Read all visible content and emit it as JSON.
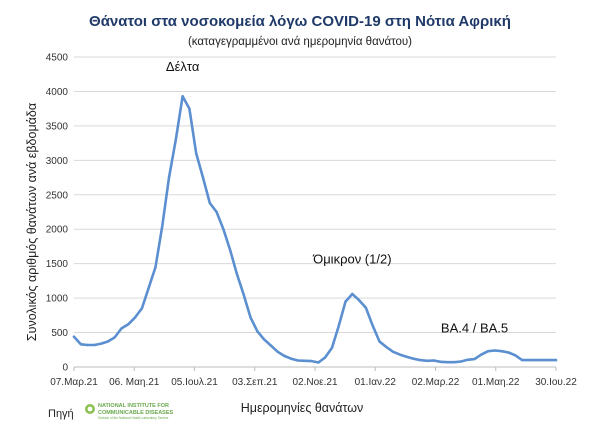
{
  "chart_data": {
    "type": "line",
    "title": "Θάνατοι στα νοσοκομεία λόγω COVID-19 στη Νότια Αφρική",
    "subtitle": "(καταγεγραμμένοι ανά ημερομηνία θανάτου)",
    "xlabel": "Ημερομηνίες θανάτων",
    "ylabel": "Συνολικός αριθμός θανάτων ανά εβδομάδα",
    "ylim": [
      0,
      4500
    ],
    "y_ticks": [
      0,
      500,
      1000,
      1500,
      2000,
      2500,
      3000,
      3500,
      4000,
      4500
    ],
    "x_tick_labels": [
      "07.Μαρ.21",
      "06. Μαη.21",
      "05.Ιουλ.21",
      "03.Σεπ.21",
      "02.Νοε.21",
      "01.Ιαν.22",
      "02.Μαρ.22",
      "01.Μαη.22",
      "30.Ιου.22"
    ],
    "grid": true,
    "legend": "none",
    "line_color": "#5b8fd0",
    "series": [
      {
        "x_weeks": [
          0,
          1,
          2,
          3,
          4,
          5,
          6,
          7,
          8,
          9,
          10,
          11,
          12,
          13,
          14,
          15,
          16,
          17,
          18,
          19,
          20,
          21,
          22,
          23,
          24,
          25,
          26,
          27,
          28,
          29,
          30,
          31,
          32,
          33,
          34,
          35,
          36,
          37,
          38,
          39,
          40,
          41,
          42,
          43,
          44,
          45,
          46,
          47,
          48,
          49,
          50,
          51,
          52,
          53,
          54,
          55,
          56,
          57,
          58,
          59,
          60,
          61,
          62,
          63,
          64,
          65,
          66,
          67,
          68,
          69,
          70,
          71
        ],
        "values": [
          440,
          330,
          320,
          320,
          340,
          370,
          430,
          560,
          620,
          720,
          850,
          1150,
          1450,
          2050,
          2750,
          3300,
          3930,
          3750,
          3100,
          2750,
          2380,
          2250,
          2000,
          1700,
          1350,
          1050,
          720,
          520,
          400,
          310,
          220,
          160,
          120,
          95,
          90,
          85,
          65,
          140,
          280,
          600,
          950,
          1060,
          970,
          860,
          600,
          370,
          290,
          220,
          180,
          150,
          120,
          100,
          90,
          95,
          75,
          70,
          70,
          80,
          105,
          115,
          180,
          230,
          240,
          230,
          210,
          170,
          100,
          100,
          100,
          100,
          100,
          100
        ]
      }
    ],
    "annotations": [
      {
        "text": "Δέλτα"
      },
      {
        "text": "Όμικρον (1/2)"
      },
      {
        "text": "BA.4 / BA.5"
      }
    ]
  },
  "source": {
    "label": "Πηγή",
    "org_line1": "NATIONAL INSTITUTE FOR",
    "org_line2": "COMMUNICABLE DISEASES",
    "org_line3": "Division of the National Health Laboratory Service"
  }
}
